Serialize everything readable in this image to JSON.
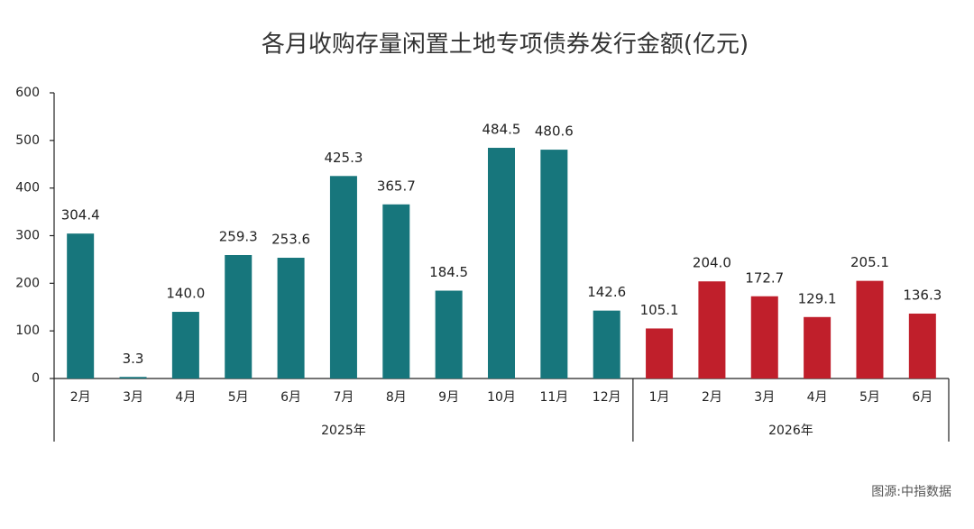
{
  "chart_data": {
    "type": "bar",
    "title": "各月收购存量闲置土地专项债券发行金额(亿元)",
    "groups": [
      {
        "name": "2025年",
        "color": "#17767c",
        "categories": [
          "2月",
          "3月",
          "4月",
          "5月",
          "6月",
          "7月",
          "8月",
          "9月",
          "10月",
          "11月",
          "12月"
        ],
        "values": [
          304.4,
          3.3,
          140.0,
          259.3,
          253.6,
          425.3,
          365.7,
          184.5,
          484.5,
          480.6,
          142.6
        ],
        "value_labels": [
          "304.4",
          "3.3",
          "140.0",
          "259.3",
          "253.6",
          "425.3",
          "365.7",
          "184.5",
          "484.5",
          "480.6",
          "142.6"
        ]
      },
      {
        "name": "2026年",
        "color": "#c01f2b",
        "categories": [
          "1月",
          "2月",
          "3月",
          "4月",
          "5月",
          "6月"
        ],
        "values": [
          105.1,
          204.0,
          172.7,
          129.1,
          205.1,
          136.3
        ],
        "value_labels": [
          "105.1",
          "204.0",
          "172.7",
          "129.1",
          "205.1",
          "136.3"
        ]
      }
    ],
    "ylim": [
      0,
      600
    ],
    "yticks": [
      0,
      100,
      200,
      300,
      400,
      500,
      600
    ],
    "grid": false,
    "source": "图源:中指数据"
  }
}
